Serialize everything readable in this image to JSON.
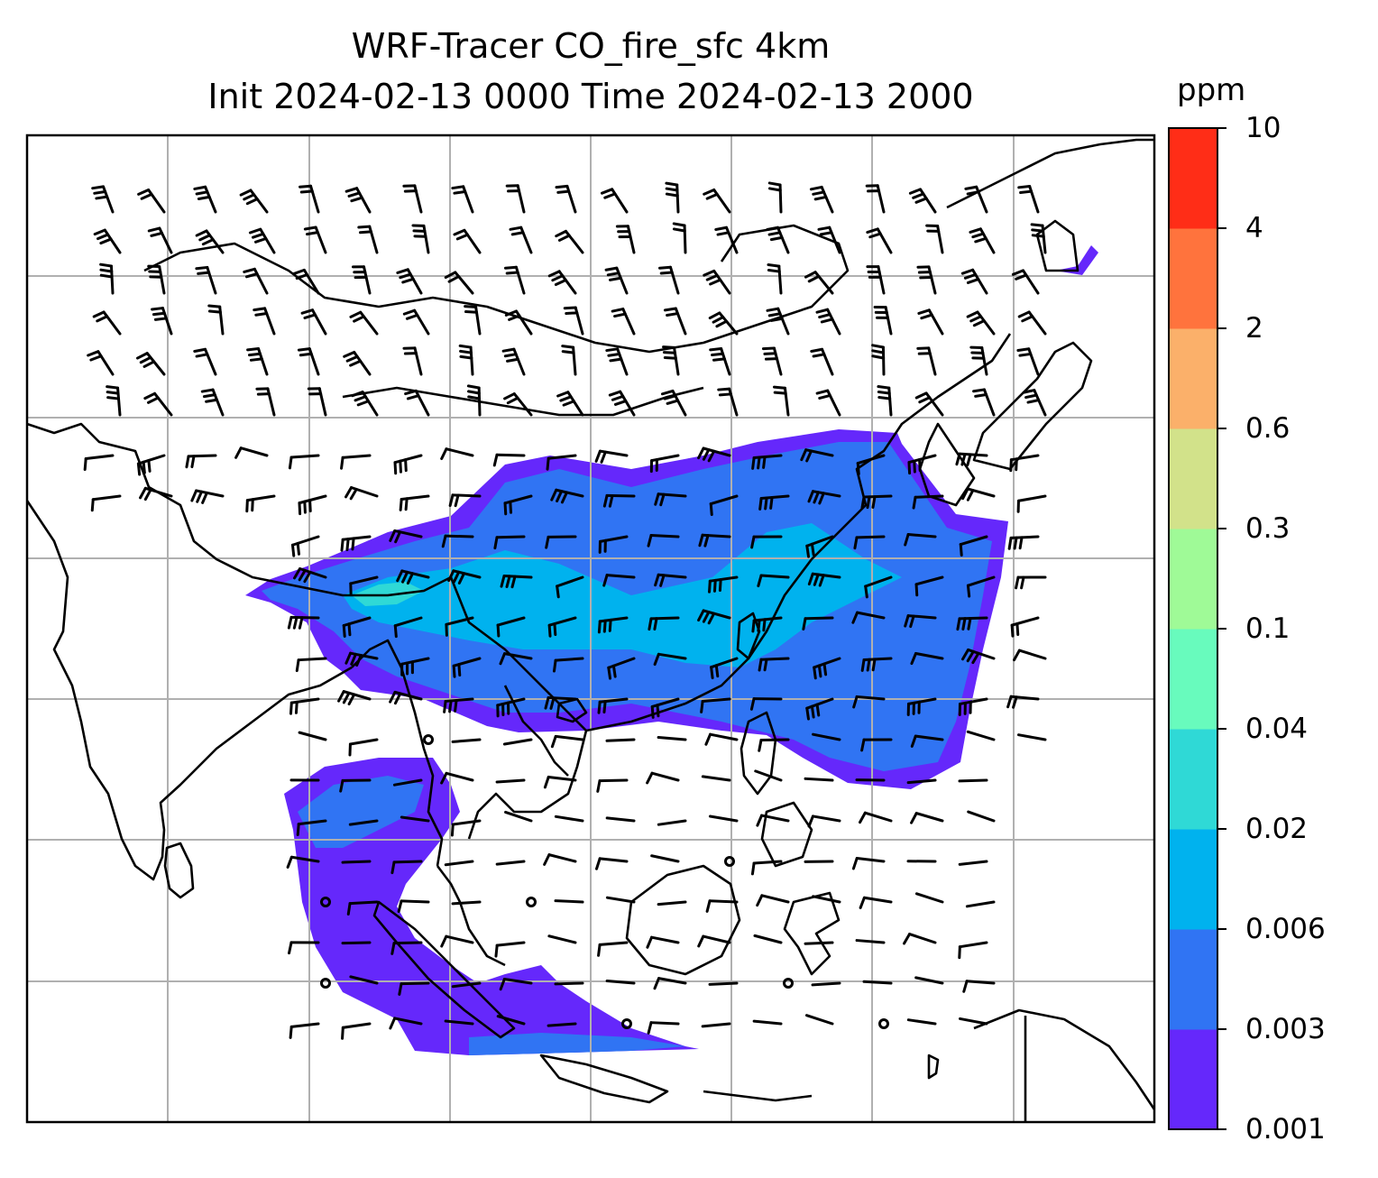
{
  "title": {
    "line1": "WRF-Tracer CO_fire_sfc 4km",
    "line2": "Init 2024-02-13 0000 Time 2024-02-13 2000"
  },
  "colorbar": {
    "unit": "ppm",
    "ticks": [
      "0.001",
      "0.003",
      "0.006",
      "0.02",
      "0.04",
      "0.1",
      "0.3",
      "0.6",
      "2",
      "4",
      "10"
    ],
    "colors": [
      "#6528fb",
      "#3074f3",
      "#00b2ee",
      "#2fd9d6",
      "#68fbbd",
      "#9ffa97",
      "#d2e28a",
      "#fbb06a",
      "#ff733d",
      "#ff2d17"
    ]
  },
  "map": {
    "field": "CO_fire_sfc",
    "gridlines": true,
    "wind_barbs": true,
    "coastlines": true
  }
}
